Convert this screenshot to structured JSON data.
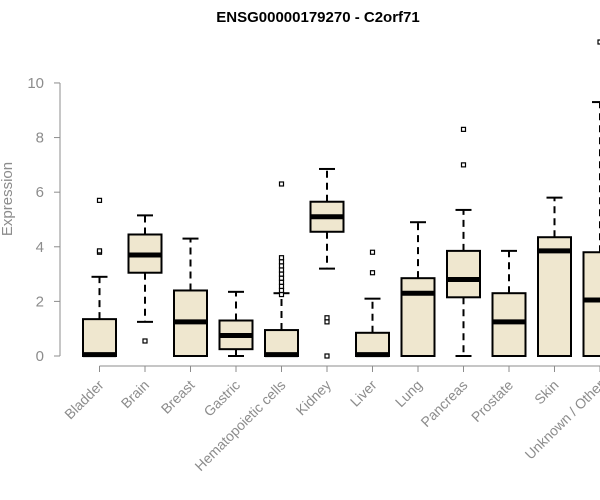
{
  "chart_data": {
    "type": "boxplot",
    "title": "ENSG00000179270 - C2orf71",
    "xlabel": "",
    "ylabel": "Expression",
    "ylim": [
      0,
      11.5
    ],
    "yticks": [
      0,
      2,
      4,
      6,
      8,
      10
    ],
    "colors": {
      "box_fill": "#efe7cf",
      "box_stroke": "#000000",
      "axis": "#8c8c8c"
    },
    "categories": [
      "Bladder",
      "Brain",
      "Breast",
      "Gastric",
      "Hematopoietic cells",
      "Kidney",
      "Liver",
      "Lung",
      "Pancreas",
      "Prostate",
      "Skin",
      "Unknown / Other"
    ],
    "boxes": [
      {
        "q1": 0.0,
        "median": 0.05,
        "q3": 1.35,
        "whisker_low": 0.0,
        "whisker_high": 2.9,
        "outliers": [
          3.8,
          3.85,
          5.7
        ]
      },
      {
        "q1": 3.05,
        "median": 3.7,
        "q3": 4.45,
        "whisker_low": 1.25,
        "whisker_high": 5.15,
        "outliers": [
          0.55
        ]
      },
      {
        "q1": 0.0,
        "median": 1.25,
        "q3": 2.4,
        "whisker_low": 0.0,
        "whisker_high": 4.3,
        "outliers": []
      },
      {
        "q1": 0.25,
        "median": 0.75,
        "q3": 1.3,
        "whisker_low": 0.0,
        "whisker_high": 2.35,
        "outliers": []
      },
      {
        "q1": 0.0,
        "median": 0.05,
        "q3": 0.95,
        "whisker_low": 0.0,
        "whisker_high": 2.3,
        "outliers": [
          2.25,
          2.4,
          2.55,
          2.7,
          2.85,
          3.0,
          3.15,
          3.3,
          3.45,
          3.6,
          6.3
        ]
      },
      {
        "q1": 4.55,
        "median": 5.1,
        "q3": 5.65,
        "whisker_low": 3.2,
        "whisker_high": 6.85,
        "outliers": [
          0.0,
          1.25,
          1.4
        ]
      },
      {
        "q1": 0.0,
        "median": 0.05,
        "q3": 0.85,
        "whisker_low": 0.0,
        "whisker_high": 2.1,
        "outliers": [
          3.05,
          3.8
        ]
      },
      {
        "q1": 0.0,
        "median": 2.3,
        "q3": 2.85,
        "whisker_low": 0.0,
        "whisker_high": 4.9,
        "outliers": []
      },
      {
        "q1": 2.15,
        "median": 2.8,
        "q3": 3.85,
        "whisker_low": 0.0,
        "whisker_high": 5.35,
        "outliers": [
          7.0,
          8.3
        ]
      },
      {
        "q1": 0.0,
        "median": 1.25,
        "q3": 2.3,
        "whisker_low": 0.0,
        "whisker_high": 3.85,
        "outliers": []
      },
      {
        "q1": 0.0,
        "median": 3.85,
        "q3": 4.35,
        "whisker_low": 0.0,
        "whisker_high": 5.8,
        "outliers": []
      },
      {
        "q1": 0.0,
        "median": 2.05,
        "q3": 3.8,
        "whisker_low": 0.0,
        "whisker_high": 9.3,
        "outliers": [
          11.5
        ]
      }
    ]
  }
}
